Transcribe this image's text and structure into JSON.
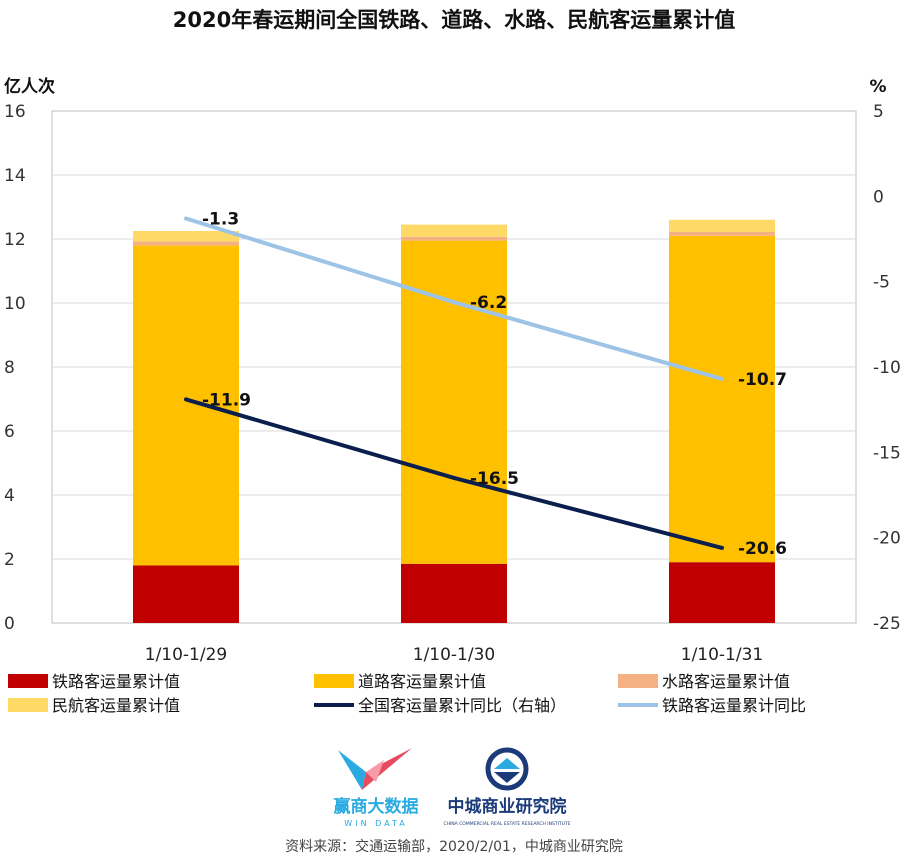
{
  "chart_data": {
    "type": "bar",
    "title": "2020年春运期间全国铁路、道路、水路、民航客运量累计值",
    "left_unit": "亿人次",
    "right_unit": "%",
    "categories": [
      "1/10-1/29",
      "1/10-1/30",
      "1/10-1/31"
    ],
    "left_axis": {
      "ylim": [
        0,
        16
      ],
      "ticks": [
        "0",
        "2",
        "4",
        "6",
        "8",
        "10",
        "12",
        "14",
        "16"
      ]
    },
    "right_axis": {
      "ylim": [
        -25,
        5
      ],
      "ticks": [
        "-25",
        "-20",
        "-15",
        "-10",
        "-5",
        "0",
        "5"
      ]
    },
    "stack_series": [
      {
        "name": "铁路客运量累计值",
        "color": "#C00000",
        "values": [
          1.8,
          1.85,
          1.9
        ]
      },
      {
        "name": "道路客运量累计值",
        "color": "#FFC000",
        "values": [
          10.0,
          10.1,
          10.2
        ]
      },
      {
        "name": "水路客运量累计值",
        "color": "#F4B183",
        "values": [
          0.12,
          0.12,
          0.12
        ]
      },
      {
        "name": "民航客运量累计值",
        "color": "#FFD966",
        "values": [
          0.33,
          0.38,
          0.38
        ]
      }
    ],
    "line_series": [
      {
        "name": "全国客运量累计同比（右轴）",
        "color": "#0B1F4F",
        "values": [
          -11.9,
          -16.5,
          -20.6
        ],
        "labels": [
          "-11.9",
          "-16.5",
          "-20.6"
        ]
      },
      {
        "name": "铁路客运量累计同比",
        "color": "#9DC3E6",
        "values": [
          -1.3,
          -6.2,
          -10.7
        ],
        "labels": [
          "-1.3",
          "-6.2",
          "-10.7"
        ]
      }
    ],
    "grid": true,
    "legend_position": "bottom"
  },
  "legend_order": [
    "铁路客运量累计值",
    "道路客运量累计值",
    "水路客运量累计值",
    "民航客运量累计值",
    "全国客运量累计同比（右轴）",
    "铁路客运量累计同比"
  ],
  "logos": {
    "wind": {
      "name": "赢商大数据",
      "sub": "WIN DATA",
      "colors": [
        "#29ABE2",
        "#E84A5F"
      ]
    },
    "ccre": {
      "name": "中城商业研究院",
      "sub": "CHINA COMMERCIAL REAL ESTATE RESEARCH INSTITUTE",
      "color": "#1B3A7A"
    }
  },
  "source": "资料来源：交通运输部，2020/2/01，中城商业研究院"
}
